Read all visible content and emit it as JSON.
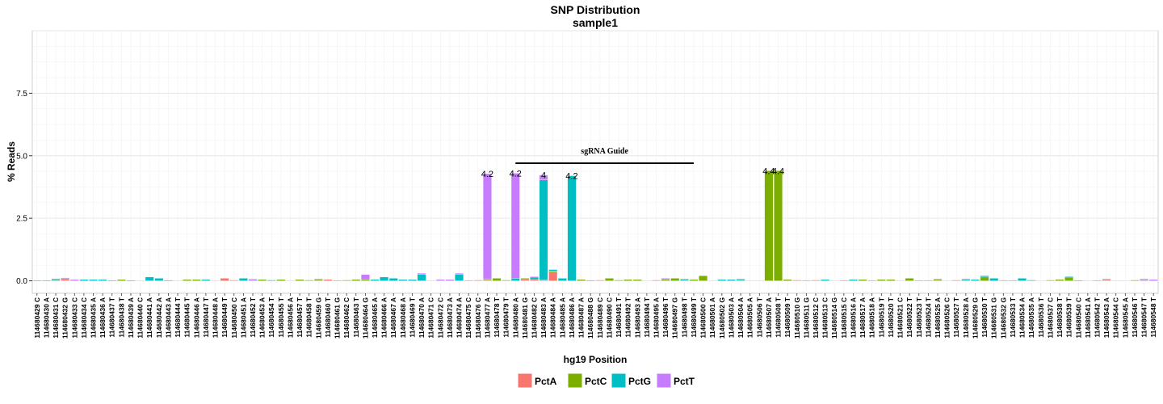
{
  "chart_data": {
    "type": "bar",
    "title": "SNP Distribution",
    "subtitle": "sample1",
    "xlabel": "hg19 Position",
    "ylabel": "% Reads",
    "ylim": [
      -0.5,
      10
    ],
    "yticks": [
      0.0,
      2.5,
      5.0,
      7.5
    ],
    "ytick_labels": [
      "0.0",
      "2.5",
      "5.0",
      "7.5"
    ],
    "grid": true,
    "legend_position": "bottom",
    "categories": [
      "114680429 C",
      "114680430 A",
      "114680431 C",
      "114680432 G",
      "114680433 C",
      "114680434 C",
      "114680435 A",
      "114680436 A",
      "114680437 T",
      "114680438 T",
      "114680439 A",
      "114680440 C",
      "114680441 A",
      "114680442 A",
      "114680443 A",
      "114680444 T",
      "114680445 T",
      "114680446 A",
      "114680447 T",
      "114680448 A",
      "114680449 T",
      "114680450 C",
      "114680451 A",
      "114680452 T",
      "114680453 A",
      "114680454 T",
      "114680455 T",
      "114680456 A",
      "114680457 T",
      "114680458 T",
      "114680459 G",
      "114680460 T",
      "114680461 G",
      "114680462 C",
      "114680463 T",
      "114680464 G",
      "114680465 A",
      "114680466 A",
      "114680467 A",
      "114680468 A",
      "114680469 T",
      "114680470 A",
      "114680471 C",
      "114680472 C",
      "114680473 A",
      "114680474 A",
      "114680475 C",
      "114680476 C",
      "114680477 A",
      "114680478 T",
      "114680479 T",
      "114680480 A",
      "114680481 G",
      "114680482 C",
      "114680483 A",
      "114680484 A",
      "114680485 A",
      "114680486 A",
      "114680487 A",
      "114680488 G",
      "114680489 C",
      "114680490 C",
      "114680491 T",
      "114680492 T",
      "114680493 A",
      "114680494 T",
      "114680495 A",
      "114680496 T",
      "114680497 G",
      "114680498 T",
      "114680499 T",
      "114680500 C",
      "114680501 A",
      "114680502 G",
      "114680503 A",
      "114680504 A",
      "114680505 A",
      "114680506 T",
      "114680507 A",
      "114680508 T",
      "114680509 T",
      "114680510 G",
      "114680511 G",
      "114680512 C",
      "114680513 C",
      "114680514 G",
      "114680515 C",
      "114680516 A",
      "114680517 A",
      "114680518 A",
      "114680519 T",
      "114680520 T",
      "114680521 C",
      "114680522 T",
      "114680523 T",
      "114680524 T",
      "114680525 A",
      "114680526 C",
      "114680527 T",
      "114680528 A",
      "114680529 G",
      "114680530 T",
      "114680531 G",
      "114680532 G",
      "114680533 T",
      "114680534 A",
      "114680535 A",
      "114680536 T",
      "114680537 C",
      "114680538 T",
      "114680539 T",
      "114680540 C",
      "114680541 A",
      "114680542 T",
      "114680543 A",
      "114680544 C",
      "114680545 A",
      "114680546 T",
      "114680547 T",
      "114680548 T"
    ],
    "series": [
      {
        "name": "PctA",
        "color": "#F8766D",
        "values": [
          0,
          0,
          0,
          0.05,
          0,
          0,
          0,
          0,
          0,
          0,
          0,
          0,
          0,
          0,
          0,
          0,
          0,
          0,
          0,
          0,
          0.1,
          0.03,
          0,
          0.02,
          0,
          0,
          0,
          0,
          0,
          0,
          0.02,
          0.05,
          0.02,
          0,
          0,
          0,
          0,
          0,
          0,
          0,
          0,
          0,
          0,
          0,
          0,
          0,
          0.02,
          0.03,
          0.03,
          0,
          0,
          0,
          0.05,
          0.05,
          0.03,
          0.35,
          0,
          0,
          0,
          0,
          0.03,
          0,
          0,
          0,
          0,
          0,
          0.03,
          0,
          0,
          0.02,
          0,
          0,
          0,
          0,
          0,
          0.02,
          0,
          0,
          0,
          0,
          0,
          0.03,
          0.02,
          0.03,
          0,
          0,
          0.02,
          0,
          0,
          0.02,
          0,
          0,
          0,
          0,
          0.02,
          0.02,
          0.02,
          0,
          0.03,
          0.02,
          0,
          0,
          0,
          0.02,
          0.02,
          0,
          0,
          0,
          0,
          0,
          0,
          0,
          0,
          0.02,
          0.05,
          0,
          0,
          0,
          0,
          0
        ]
      },
      {
        "name": "PctC",
        "color": "#7CAE00",
        "values": [
          0,
          0,
          0.03,
          0.05,
          0,
          0,
          0,
          0,
          0,
          0.05,
          0,
          0,
          0,
          0,
          0,
          0,
          0.05,
          0.05,
          0,
          0,
          0,
          0,
          0,
          0,
          0.05,
          0,
          0.05,
          0,
          0.05,
          0.03,
          0.05,
          0,
          0,
          0.03,
          0.05,
          0.05,
          0,
          0,
          0,
          0,
          0,
          0,
          0,
          0,
          0,
          0,
          0,
          0,
          0.05,
          0.1,
          0.03,
          0,
          0.05,
          0,
          0,
          0.05,
          0,
          0,
          0.05,
          0.02,
          0,
          0.1,
          0.03,
          0.05,
          0.05,
          0,
          0,
          0.05,
          0.1,
          0,
          0.05,
          0.2,
          0,
          0,
          0,
          0,
          0,
          0,
          4.4,
          4.4,
          0.05,
          0,
          0,
          0,
          0,
          0,
          0,
          0,
          0.05,
          0,
          0.05,
          0.05,
          0,
          0.1,
          0,
          0,
          0.05,
          0,
          0,
          0,
          0,
          0.15,
          0,
          0,
          0,
          0,
          0,
          0,
          0.03,
          0.05,
          0.15,
          0,
          0,
          0,
          0,
          0,
          0,
          0.03,
          0.03,
          0
        ]
      },
      {
        "name": "PctG",
        "color": "#00BFC4",
        "values": [
          0.02,
          0.02,
          0.05,
          0,
          0,
          0.05,
          0.05,
          0.05,
          0.02,
          0,
          0.02,
          0,
          0.15,
          0.1,
          0.02,
          0,
          0,
          0,
          0.05,
          0,
          0,
          0,
          0.1,
          0,
          0,
          0.03,
          0,
          0,
          0,
          0,
          0,
          0,
          0,
          0,
          0,
          0,
          0.05,
          0.15,
          0.1,
          0.05,
          0.05,
          0.25,
          0,
          0,
          0,
          0.25,
          0,
          0,
          0,
          0,
          0,
          0.1,
          0,
          0.1,
          4.0,
          0.05,
          0.1,
          4.2,
          0,
          0,
          0,
          0,
          0,
          0,
          0,
          0,
          0,
          0,
          0,
          0.05,
          0,
          0,
          0,
          0.05,
          0.05,
          0.05,
          0,
          0,
          0,
          0,
          0,
          0,
          0,
          0,
          0.05,
          0,
          0,
          0.05,
          0,
          0,
          0,
          0,
          0,
          0,
          0,
          0,
          0,
          0,
          0,
          0.05,
          0.05,
          0.05,
          0.1,
          0,
          0,
          0.1,
          0.03,
          0,
          0,
          0,
          0.02,
          0.02,
          0,
          0,
          0.02,
          0,
          0,
          0,
          0,
          0
        ]
      },
      {
        "name": "PctT",
        "color": "#C77CFF",
        "values": [
          0,
          0,
          0,
          0.02,
          0.05,
          0,
          0,
          0,
          0,
          0,
          0,
          0,
          0,
          0,
          0,
          0,
          0,
          0,
          0,
          0,
          0,
          0,
          0,
          0.05,
          0,
          0,
          0,
          0,
          0,
          0,
          0,
          0,
          0,
          0,
          0,
          0.2,
          0,
          0,
          0,
          0,
          0,
          0.05,
          0,
          0.05,
          0.05,
          0.05,
          0,
          0,
          4.2,
          0,
          0,
          4.2,
          0,
          0.02,
          0.2,
          0,
          0,
          0,
          0,
          0,
          0,
          0,
          0,
          0,
          0,
          0,
          0,
          0.05,
          0,
          0,
          0,
          0,
          0,
          0,
          0,
          0,
          0,
          0,
          0,
          0,
          0,
          0,
          0,
          0,
          0,
          0,
          0,
          0,
          0,
          0,
          0,
          0,
          0,
          0,
          0,
          0,
          0,
          0,
          0,
          0,
          0,
          0,
          0,
          0,
          0,
          0,
          0,
          0,
          0,
          0,
          0,
          0,
          0,
          0,
          0,
          0,
          0,
          0,
          0.05,
          0.05
        ]
      }
    ],
    "data_labels": [
      {
        "category": "114680477 A",
        "text": "4.2"
      },
      {
        "category": "114680480 A",
        "text": "4.2"
      },
      {
        "category": "114680483 A",
        "text": "4"
      },
      {
        "category": "114680486 A",
        "text": "4.2"
      },
      {
        "category": "114680507 A",
        "text": "4.4"
      },
      {
        "category": "114680508 T",
        "text": "4.4"
      }
    ],
    "annotation": {
      "text": "sgRNA Guide",
      "y": 4.7,
      "x_start": "114680480 A",
      "x_end": "114680499 T"
    }
  }
}
